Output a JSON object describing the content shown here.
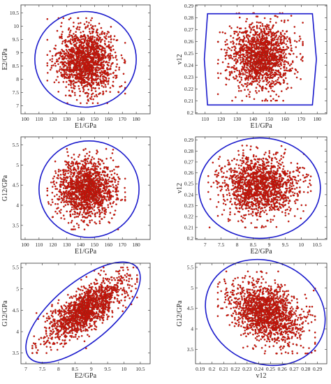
{
  "figure": {
    "point_color": "#ee0000",
    "point_edge_color": "#6b3a1f",
    "envelope_color": "#1a1acc"
  },
  "chart_data": [
    {
      "type": "scatter",
      "xlabel": "E1/GPa",
      "ylabel": "E2/GPa",
      "xlim": [
        97,
        190
      ],
      "ylim": [
        6.7,
        10.8
      ],
      "xticks": [
        "100",
        "110",
        "120",
        "130",
        "140",
        "150",
        "160",
        "170",
        "180"
      ],
      "yticks": [
        "7",
        "7.5",
        "8",
        "8.5",
        "9",
        "9.5",
        "10",
        "10.5"
      ],
      "grid": false,
      "series": [
        {
          "points_distribution": {
            "x_range": [
              116,
              172
            ],
            "y_range": [
              7.1,
              10.3
            ],
            "correlation": 0.0,
            "count": 1500
          }
        }
      ],
      "envelope": {
        "shape": "ellipse",
        "center": [
          143.5,
          8.75
        ],
        "x_radius": 36.5,
        "y_radius": 1.8
      }
    },
    {
      "type": "scatter",
      "xlabel": "E1/GPa",
      "ylabel": "v12",
      "xlim": [
        104,
        186
      ],
      "ylim": [
        0.199,
        0.291
      ],
      "xticks": [
        "110",
        "120",
        "130",
        "140",
        "150",
        "160",
        "170",
        "180"
      ],
      "yticks": [
        "0.2",
        "0.21",
        "0.22",
        "0.23",
        "0.24",
        "0.25",
        "0.26",
        "0.27",
        "0.28",
        "0.29"
      ],
      "grid": false,
      "series": [
        {
          "points_distribution": {
            "x_range": [
              118,
              171
            ],
            "y_range": [
              0.21,
              0.284
            ],
            "correlation": 0.0,
            "count": 1500
          }
        }
      ],
      "envelope": {
        "shape": "polygon",
        "vertices": [
          [
            111.5,
            0.2835
          ],
          [
            177,
            0.2835
          ],
          [
            179.5,
            0.245
          ],
          [
            177,
            0.2065
          ],
          [
            111.5,
            0.2065
          ],
          [
            109.5,
            0.245
          ]
        ]
      }
    },
    {
      "type": "scatter",
      "xlabel": "E1/GPa",
      "ylabel": "G12/GPa",
      "xlim": [
        97,
        190
      ],
      "ylim": [
        3.15,
        5.7
      ],
      "xticks": [
        "100",
        "110",
        "120",
        "130",
        "140",
        "150",
        "160",
        "170",
        "180"
      ],
      "yticks": [
        "3.5",
        "4",
        "4.5",
        "5",
        "5.5"
      ],
      "grid": false,
      "series": [
        {
          "points_distribution": {
            "x_range": [
              116,
              172
            ],
            "y_range": [
              3.4,
              5.4
            ],
            "correlation": 0.05,
            "count": 1500
          }
        }
      ],
      "envelope": {
        "shape": "ellipse",
        "center": [
          146,
          4.4
        ],
        "x_radius": 36,
        "y_radius": 1.2
      }
    },
    {
      "type": "scatter",
      "xlabel": "E2/GPa",
      "ylabel": "v12",
      "xlim": [
        6.7,
        10.8
      ],
      "ylim": [
        0.199,
        0.293
      ],
      "xticks": [
        "7",
        "7.5",
        "8",
        "8.5",
        "9",
        "9.5",
        "10",
        "10.5"
      ],
      "yticks": [
        "0.2",
        "0.21",
        "0.22",
        "0.23",
        "0.24",
        "0.25",
        "0.26",
        "0.27",
        "0.28",
        "0.29"
      ],
      "grid": false,
      "series": [
        {
          "points_distribution": {
            "x_range": [
              7.1,
              10.3
            ],
            "y_range": [
              0.21,
              0.285
            ],
            "correlation": 0.0,
            "count": 1500
          }
        }
      ],
      "envelope": {
        "shape": "ellipse",
        "center": [
          8.7,
          0.246
        ],
        "x_radius": 1.9,
        "y_radius": 0.046
      }
    },
    {
      "type": "scatter",
      "xlabel": "E2/GPa",
      "ylabel": "G12/GPa",
      "xlim": [
        6.85,
        10.8
      ],
      "ylim": [
        3.25,
        5.6
      ],
      "xticks": [
        "7",
        "7.5",
        "8",
        "8.5",
        "9",
        "9.5",
        "10",
        "10.5"
      ],
      "yticks": [
        "3.5",
        "4",
        "4.5",
        "5",
        "5.5"
      ],
      "grid": false,
      "series": [
        {
          "points_distribution": {
            "x_range": [
              7.2,
              10.4
            ],
            "y_range": [
              3.5,
              5.5
            ],
            "correlation": 0.75,
            "count": 1500
          }
        }
      ],
      "envelope": {
        "shape": "rotated_ellipse",
        "center": [
          8.75,
          4.4
        ],
        "major_endpoints": [
          [
            7.1,
            3.4
          ],
          [
            10.4,
            5.5
          ]
        ],
        "minor_endpoints": [
          [
            8.15,
            4.95
          ],
          [
            9.4,
            3.95
          ]
        ]
      }
    },
    {
      "type": "scatter",
      "xlabel": "v12",
      "ylabel": "G12/GPa",
      "xlim": [
        0.186,
        0.298
      ],
      "ylim": [
        3.15,
        5.6
      ],
      "xticks": [
        "0.19",
        "0.2",
        "0.21",
        "0.22",
        "0.23",
        "0.24",
        "0.25",
        "0.26",
        "0.27",
        "0.28",
        "0.29"
      ],
      "yticks": [
        "3.5",
        "4",
        "4.5",
        "5",
        "5.5"
      ],
      "grid": false,
      "series": [
        {
          "points_distribution": {
            "x_range": [
              0.205,
              0.288
            ],
            "y_range": [
              3.4,
              5.4
            ],
            "correlation": -0.35,
            "count": 1500
          }
        }
      ],
      "envelope": {
        "shape": "rotated_ellipse",
        "center": [
          0.2455,
          4.4
        ],
        "major_endpoints": [
          [
            0.1975,
            5.0
          ],
          [
            0.2935,
            3.8
          ]
        ],
        "minor_endpoints": [
          [
            0.2285,
            3.25
          ],
          [
            0.2625,
            5.55
          ]
        ]
      }
    }
  ]
}
